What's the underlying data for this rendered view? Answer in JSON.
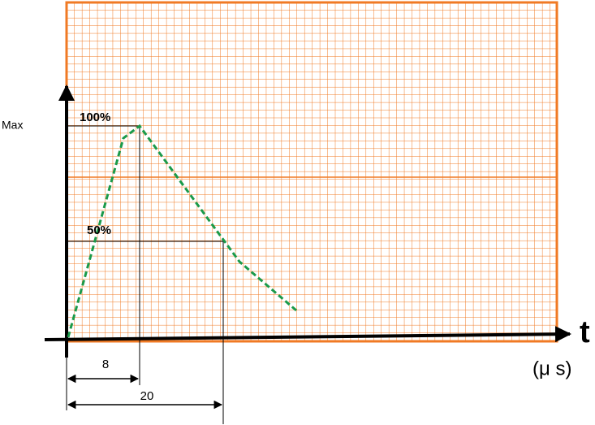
{
  "labels": {
    "max": "Max",
    "peak": "100%",
    "half": "50%",
    "axis_t": "t",
    "unit": "(μ s)",
    "front_time": "8",
    "half_time": "20"
  }
}
